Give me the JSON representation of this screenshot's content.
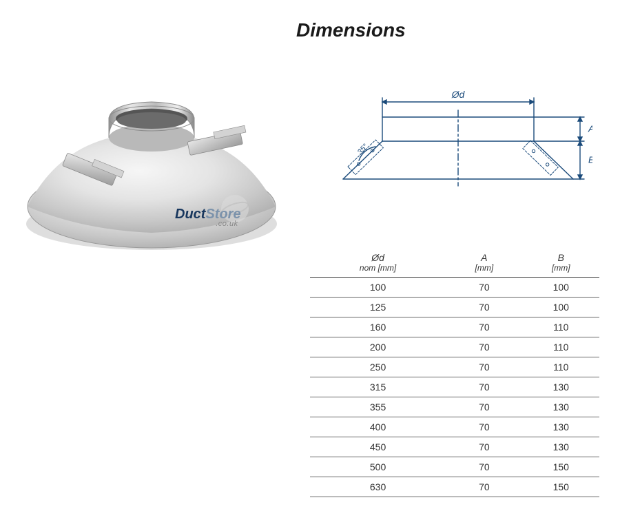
{
  "title": "Dimensions",
  "logo": {
    "text1": "Duct",
    "text2": "Store",
    "sub": ".co.uk"
  },
  "diagram": {
    "label_diameter": "Ød",
    "label_angle": "35°",
    "label_A": "A",
    "label_B": "B",
    "stroke": "#1a4a7a",
    "stroke_width": 1.4,
    "hatch": "#1a4a7a"
  },
  "product_render": {
    "metal_light": "#e8e8e8",
    "metal_dark": "#9a9a9a",
    "metal_mid": "#c8c8c8",
    "shadow": "#bfbfbf"
  },
  "table": {
    "columns": [
      {
        "sym": "Ød",
        "unit": "nom [mm]"
      },
      {
        "sym": "A",
        "unit": "[mm]"
      },
      {
        "sym": "B",
        "unit": "[mm]"
      }
    ],
    "rows": [
      [
        "100",
        "70",
        "100"
      ],
      [
        "125",
        "70",
        "100"
      ],
      [
        "160",
        "70",
        "110"
      ],
      [
        "200",
        "70",
        "110"
      ],
      [
        "250",
        "70",
        "110"
      ],
      [
        "315",
        "70",
        "130"
      ],
      [
        "355",
        "70",
        "130"
      ],
      [
        "400",
        "70",
        "130"
      ],
      [
        "450",
        "70",
        "130"
      ],
      [
        "500",
        "70",
        "150"
      ],
      [
        "630",
        "70",
        "150"
      ]
    ]
  }
}
